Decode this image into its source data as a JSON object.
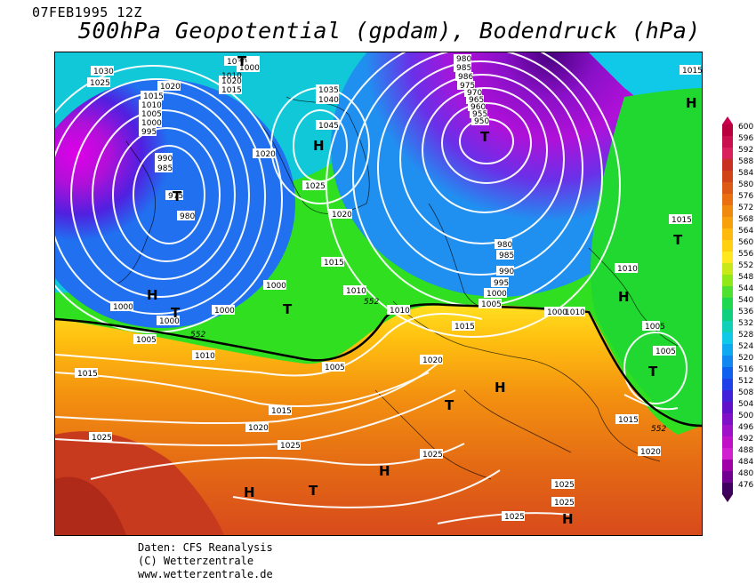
{
  "header": {
    "date": "07FEB1995 12Z",
    "title": "500hPa Geopotential (gpdam), Bodendruck (hPa)"
  },
  "credits": {
    "line1": "Daten: CFS Reanalysis",
    "line2": "(C) Wetterzentrale",
    "line3": "www.wetterzentrale.de"
  },
  "colorbar": {
    "values": [
      "600",
      "596",
      "592",
      "588",
      "584",
      "580",
      "576",
      "572",
      "568",
      "564",
      "560",
      "556",
      "552",
      "548",
      "544",
      "540",
      "536",
      "532",
      "528",
      "524",
      "520",
      "516",
      "512",
      "508",
      "504",
      "500",
      "496",
      "492",
      "488",
      "484",
      "480",
      "476"
    ],
    "colors": [
      "#b8003e",
      "#c8104e",
      "#d8205c",
      "#c83022",
      "#d04418",
      "#dc5a14",
      "#e87010",
      "#f08a0c",
      "#f8a00c",
      "#ffb80c",
      "#ffd010",
      "#ffe820",
      "#c8e818",
      "#90e818",
      "#50e030",
      "#20d850",
      "#10d080",
      "#10d0b8",
      "#10c8e8",
      "#10a8f0",
      "#1088f0",
      "#1060f0",
      "#2040e8",
      "#4020d8",
      "#6010c8",
      "#8010c8",
      "#a010c8",
      "#c010c8",
      "#d020d0",
      "#a000a8",
      "#700090",
      "#400060"
    ]
  },
  "map": {
    "isobar_labels": [
      "1030",
      "1025",
      "1020",
      "1015",
      "1010",
      "1005",
      "1000",
      "995",
      "990",
      "985",
      "975",
      "980",
      "1000",
      "1030",
      "1035",
      "1040",
      "1045",
      "1020",
      "1025",
      "1020",
      "1015",
      "1010",
      "1005",
      "1000",
      "1000",
      "1000",
      "980",
      "985",
      "990",
      "995",
      "1000",
      "1005",
      "1010",
      "1015",
      "1005",
      "1010",
      "1015",
      "1020",
      "1025",
      "1025",
      "1015",
      "1020",
      "1025",
      "1025",
      "1025",
      "1015",
      "1010",
      "1005",
      "1015",
      "1020",
      "1025",
      "980",
      "985",
      "986",
      "975",
      "970",
      "965",
      "960",
      "955",
      "950",
      "1000",
      "1020",
      "1015",
      "1010",
      "1010",
      "1015",
      "1005",
      "1000"
    ],
    "contour_labels_552": [
      "552",
      "552",
      "552"
    ],
    "highs": [
      "H",
      "H",
      "H",
      "H",
      "H",
      "H",
      "H",
      "H"
    ],
    "lows": [
      "T",
      "T",
      "T",
      "T",
      "T",
      "T",
      "T",
      "T",
      "T"
    ]
  }
}
